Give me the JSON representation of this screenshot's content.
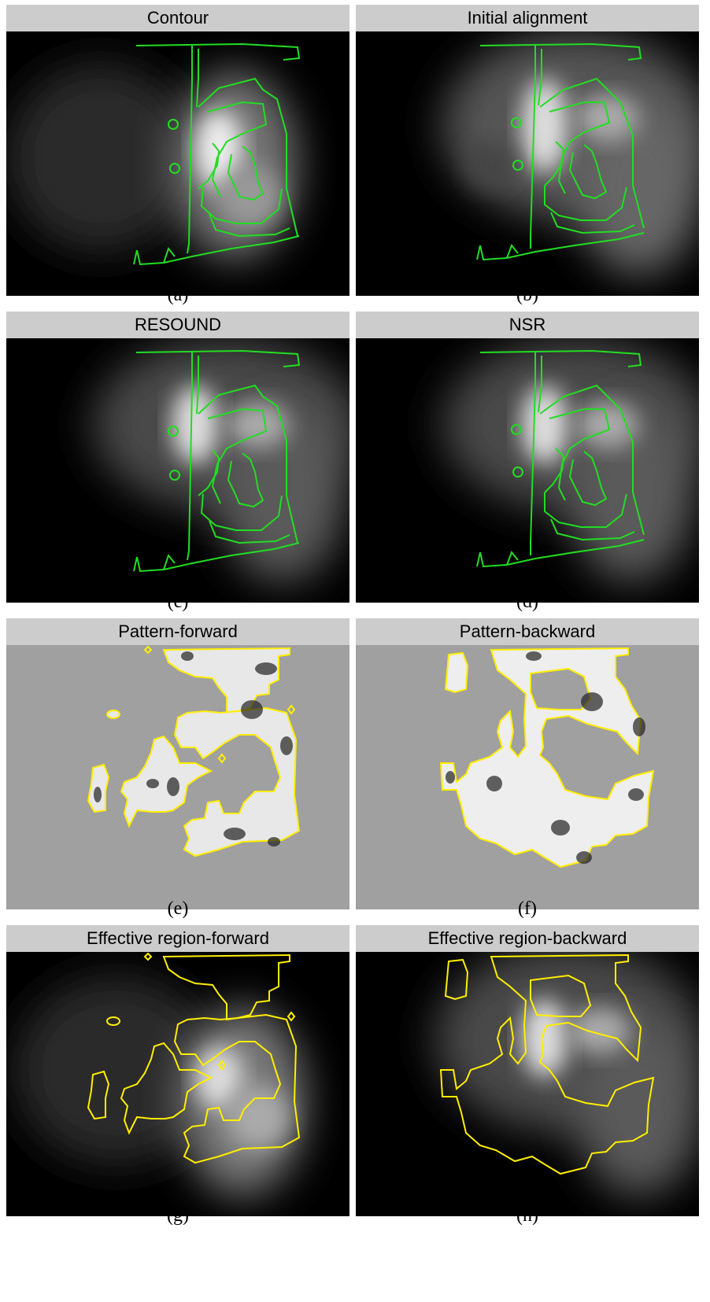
{
  "panels": [
    {
      "title": "Contour",
      "label": "(a)",
      "kind": "contour"
    },
    {
      "title": "Initial alignment",
      "label": "(b)",
      "kind": "contour"
    },
    {
      "title": "RESOUND",
      "label": "(c)",
      "kind": "contour"
    },
    {
      "title": "NSR",
      "label": "(d)",
      "kind": "contour"
    },
    {
      "title": "Pattern-forward",
      "label": "(e)",
      "kind": "pattern"
    },
    {
      "title": "Pattern-backward",
      "label": "(f)",
      "kind": "pattern"
    },
    {
      "title": "Effective region-forward",
      "label": "(g)",
      "kind": "region"
    },
    {
      "title": "Effective region-backward",
      "label": "(h)",
      "kind": "region"
    }
  ],
  "colors": {
    "header_bg": "#cccccc",
    "contour_line": "#22dd22",
    "region_line": "#ffee00",
    "pattern_bg": "#a0a0a0",
    "image_bg": "#000000"
  }
}
